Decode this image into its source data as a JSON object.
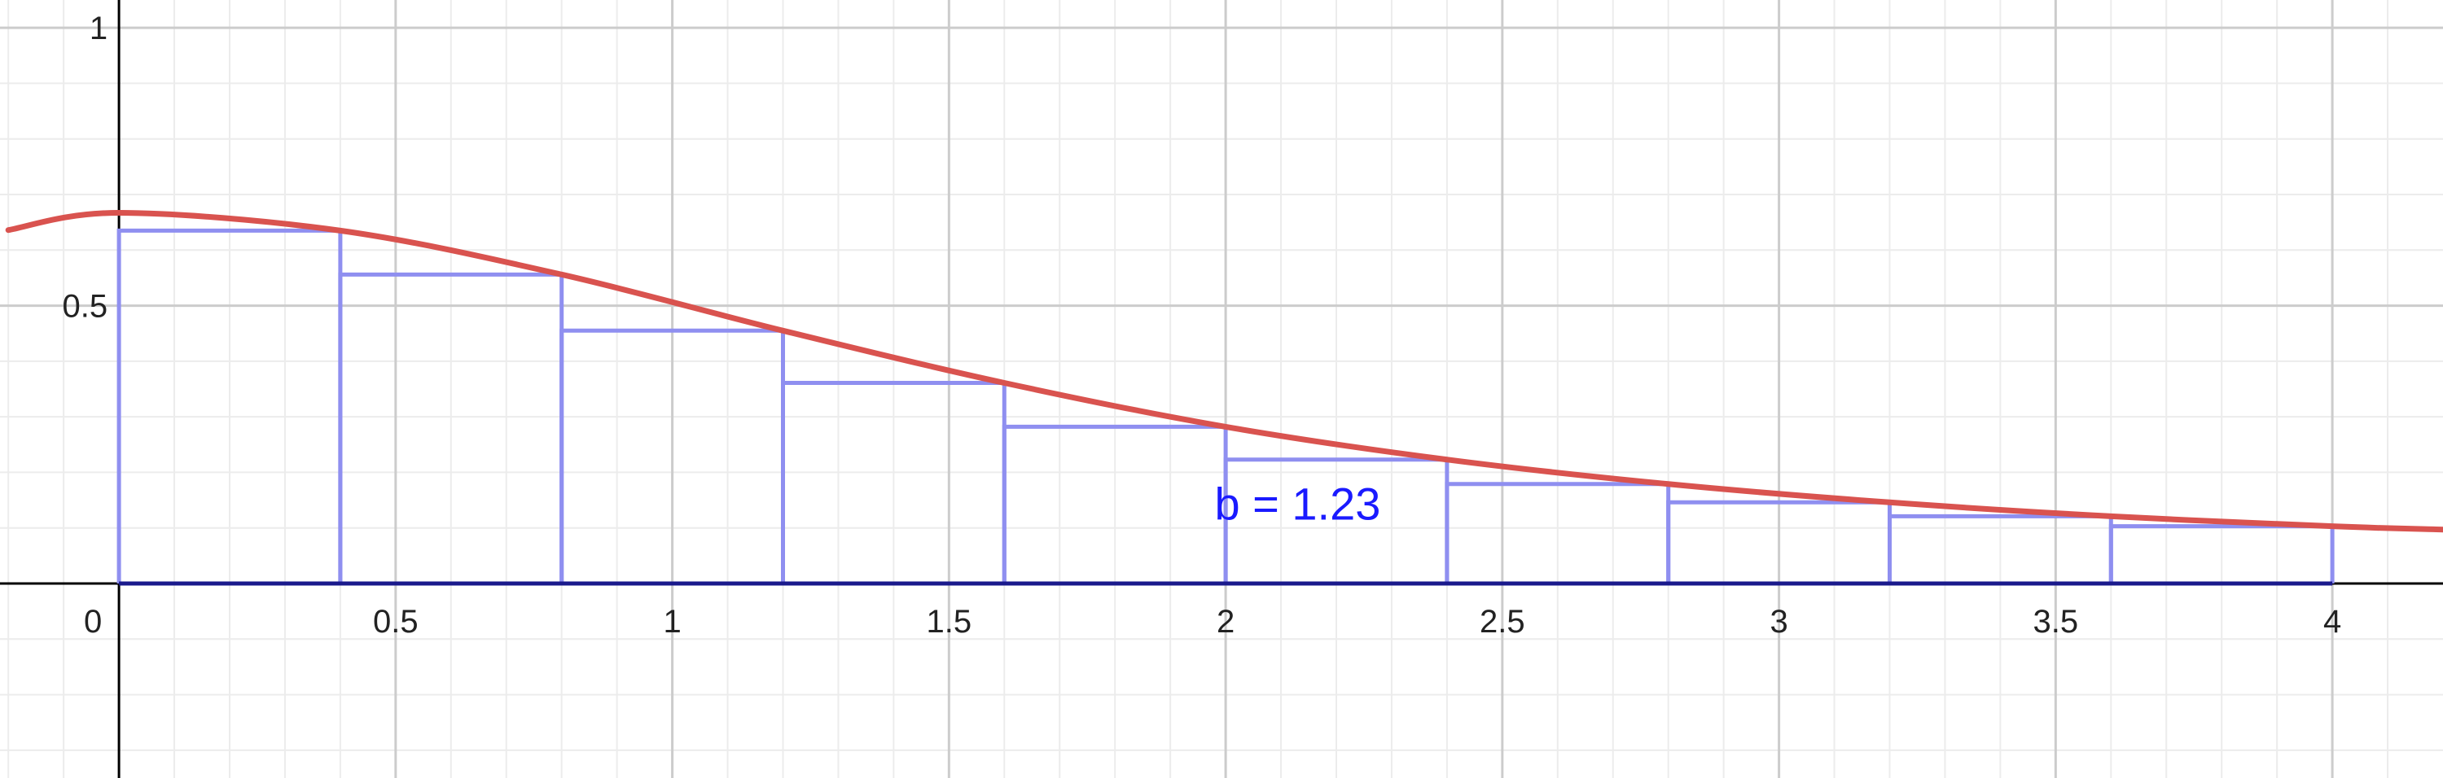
{
  "chart_data": {
    "type": "line",
    "title": "",
    "xlabel": "",
    "ylabel": "",
    "xlim": [
      -0.215,
      4.2
    ],
    "ylim": [
      -0.35,
      1.05
    ],
    "grid": true,
    "x_ticks": [
      0.5,
      1,
      1.5,
      2,
      2.5,
      3,
      3.5,
      4
    ],
    "x_tick_labels": [
      "0.5",
      "1",
      "1.5",
      "2",
      "2.5",
      "3",
      "3.5",
      "4"
    ],
    "y_ticks": [
      0.5,
      1
    ],
    "y_tick_labels": [
      "0.5",
      "1"
    ],
    "origin_label": "0",
    "series": [
      {
        "kind": "curve",
        "color": "#d9534f",
        "x": [
          -0.2,
          0,
          0.4,
          0.8,
          1.2,
          1.6,
          2.0,
          2.4,
          2.8,
          3.2,
          3.6,
          4.0,
          4.2
        ],
        "y": [
          0.636,
          0.667,
          0.635,
          0.556,
          0.455,
          0.361,
          0.282,
          0.223,
          0.179,
          0.146,
          0.121,
          0.103,
          0.097
        ]
      },
      {
        "kind": "rectangles",
        "color": "#8f8ff0",
        "x_left": [
          0,
          0.4,
          0.8,
          1.2,
          1.6,
          2.0,
          2.4,
          2.8,
          3.2,
          3.6
        ],
        "x_right": [
          0.4,
          0.8,
          1.2,
          1.6,
          2.0,
          2.4,
          2.8,
          3.2,
          3.6,
          4.0
        ],
        "heights": [
          0.635,
          0.556,
          0.455,
          0.361,
          0.282,
          0.223,
          0.179,
          0.146,
          0.121,
          0.103
        ]
      },
      {
        "kind": "baseline",
        "color": "#1a1a8c",
        "x": [
          0,
          4.0
        ],
        "y": [
          0,
          0
        ]
      }
    ],
    "annotation": {
      "text": "b = 1.23",
      "x": 2.13,
      "y": 0.115,
      "color": "#1a1aff"
    }
  }
}
